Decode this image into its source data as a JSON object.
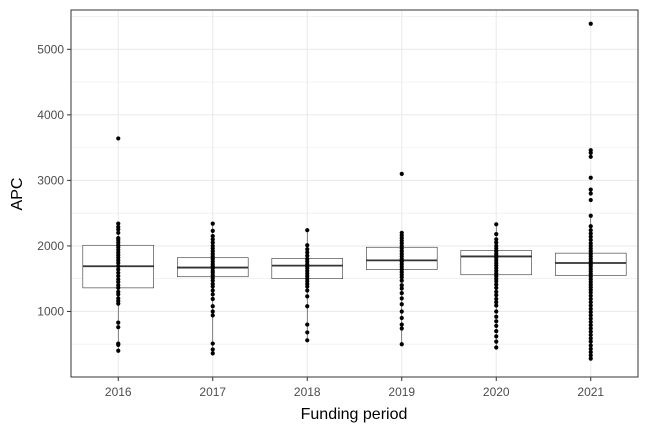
{
  "chart_data": {
    "type": "boxplot",
    "xlabel": "Funding period",
    "ylabel": "APC",
    "categories": [
      "2016",
      "2017",
      "2018",
      "2019",
      "2020",
      "2021"
    ],
    "ylim": [
      0,
      5600
    ],
    "yticks": [
      1000,
      2000,
      3000,
      4000,
      5000
    ],
    "grid": true,
    "colors": {
      "grid": "#ebebeb",
      "border": "#333333",
      "points": "#000000",
      "box": "#333333"
    },
    "boxes": [
      {
        "category": "2016",
        "lower_whisker": 400,
        "q1": 1360,
        "median": 1690,
        "q3": 2010,
        "upper_whisker": 2340,
        "points": [
          3640,
          2340,
          2290,
          2250,
          2200,
          2120,
          2090,
          2050,
          2010,
          1980,
          1940,
          1900,
          1860,
          1820,
          1780,
          1740,
          1690,
          1640,
          1590,
          1540,
          1490,
          1450,
          1400,
          1360,
          1300,
          1260,
          1200,
          1160,
          1120,
          830,
          760,
          510,
          490,
          400
        ]
      },
      {
        "category": "2017",
        "lower_whisker": 360,
        "q1": 1530,
        "median": 1670,
        "q3": 1820,
        "upper_whisker": 2340,
        "points": [
          2340,
          2230,
          2150,
          2100,
          2050,
          2000,
          1960,
          1920,
          1880,
          1840,
          1800,
          1760,
          1720,
          1690,
          1660,
          1620,
          1590,
          1550,
          1510,
          1470,
          1420,
          1380,
          1320,
          1260,
          1190,
          1080,
          1000,
          940,
          510,
          420,
          360
        ]
      },
      {
        "category": "2018",
        "lower_whisker": 560,
        "q1": 1500,
        "median": 1700,
        "q3": 1810,
        "upper_whisker": 2240,
        "points": [
          2240,
          2010,
          1950,
          1900,
          1850,
          1800,
          1760,
          1720,
          1690,
          1660,
          1620,
          1580,
          1540,
          1500,
          1460,
          1420,
          1380,
          1320,
          1230,
          1080,
          800,
          680,
          560
        ]
      },
      {
        "category": "2019",
        "lower_whisker": 500,
        "q1": 1640,
        "median": 1780,
        "q3": 1980,
        "upper_whisker": 2200,
        "points": [
          3100,
          2200,
          2160,
          2120,
          2080,
          2040,
          2000,
          1960,
          1920,
          1880,
          1840,
          1800,
          1760,
          1720,
          1680,
          1640,
          1600,
          1560,
          1520,
          1470,
          1400,
          1350,
          1280,
          1200,
          1110,
          1000,
          900,
          800,
          740,
          500
        ]
      },
      {
        "category": "2020",
        "lower_whisker": 450,
        "q1": 1560,
        "median": 1840,
        "q3": 1930,
        "upper_whisker": 2330,
        "points": [
          2330,
          2180,
          2100,
          2050,
          2000,
          1960,
          1920,
          1880,
          1850,
          1820,
          1780,
          1740,
          1700,
          1660,
          1620,
          1580,
          1540,
          1500,
          1460,
          1410,
          1360,
          1300,
          1250,
          1190,
          1140,
          1090,
          1000,
          920,
          850,
          780,
          700,
          620,
          540,
          450
        ]
      },
      {
        "category": "2021",
        "lower_whisker": 280,
        "q1": 1550,
        "median": 1740,
        "q3": 1890,
        "upper_whisker": 2460,
        "points": [
          5390,
          3460,
          3420,
          3360,
          3040,
          2860,
          2800,
          2700,
          2460,
          2300,
          2240,
          2190,
          2140,
          2090,
          2040,
          2000,
          1960,
          1920,
          1880,
          1840,
          1800,
          1760,
          1720,
          1690,
          1650,
          1610,
          1570,
          1530,
          1490,
          1450,
          1410,
          1370,
          1330,
          1290,
          1240,
          1190,
          1140,
          1090,
          1040,
          990,
          940,
          890,
          840,
          790,
          740,
          690,
          640,
          590,
          540,
          480,
          430,
          380,
          330,
          280
        ]
      }
    ]
  }
}
